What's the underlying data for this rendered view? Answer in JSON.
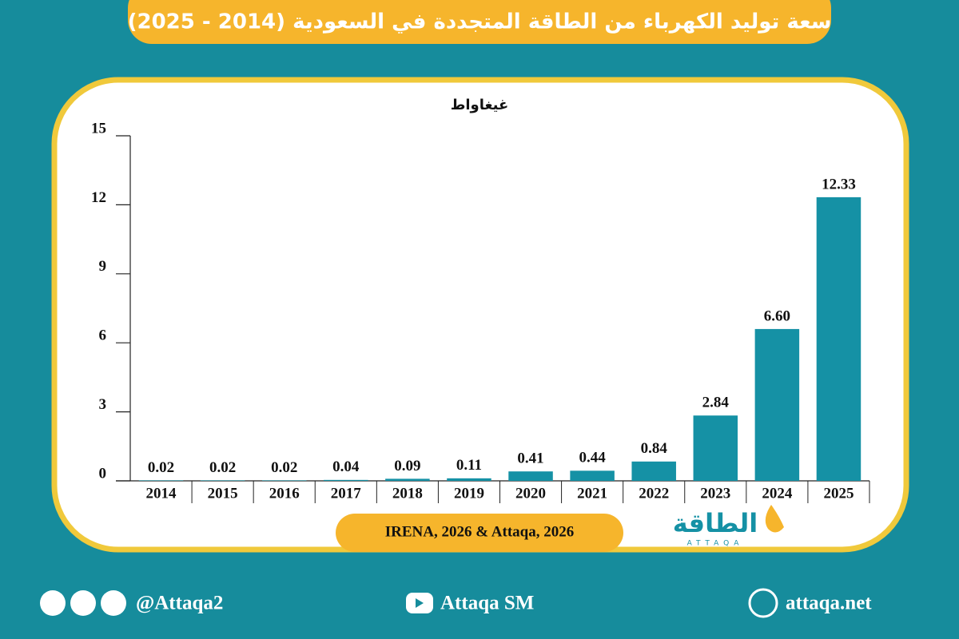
{
  "chart_data": {
    "type": "bar",
    "title": "سعة توليد الكهرباء من الطاقة المتجددة في السعودية (2014 - 2025)",
    "y_label": "غيغاواط",
    "categories": [
      "2014",
      "2015",
      "2016",
      "2017",
      "2018",
      "2019",
      "2020",
      "2021",
      "2022",
      "2023",
      "2024",
      "2025"
    ],
    "values": [
      0.02,
      0.02,
      0.02,
      0.04,
      0.09,
      0.11,
      0.41,
      0.44,
      0.84,
      2.84,
      6.6,
      12.33
    ],
    "value_labels": [
      "0.02",
      "0.02",
      "0.02",
      "0.04",
      "0.09",
      "0.11",
      "0.41",
      "0.44",
      "0.84",
      "2.84",
      "6.60",
      "12.33"
    ],
    "color": "#1591a5",
    "ylim": [
      0,
      15
    ],
    "yticks": [
      0,
      3,
      6,
      9,
      12,
      15
    ],
    "grid": false,
    "source": "IRENA, 2026 & Attaqa, 2026"
  },
  "logo": {
    "name": "الطاقة",
    "latin": "ATTAQA"
  },
  "footer": {
    "social": "@Attaqa2",
    "youtube": "Attaqa SM",
    "website": "attaqa.net"
  }
}
